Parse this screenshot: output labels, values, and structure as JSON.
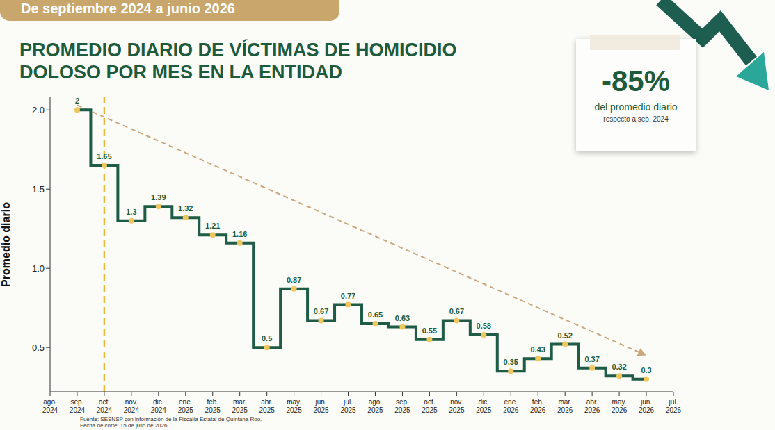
{
  "chart_data": {
    "type": "line",
    "line_style": "step",
    "marker": "circle",
    "color": "#1f5c45",
    "subtitle": "De septiembre 2024 a junio 2026",
    "title": "PROMEDIO DIARIO DE VÍCTIMAS DE HOMICIDIO DOLOSO POR MES EN LA ENTIDAD",
    "y_label": "Promedio diario",
    "categories": [
      "ago. 2024",
      "sep. 2024",
      "oct. 2024",
      "nov. 2024",
      "dic. 2024",
      "ene. 2025",
      "feb. 2025",
      "mar. 2025",
      "abr. 2025",
      "may. 2025",
      "jun. 2025",
      "jul. 2025",
      "ago. 2025",
      "sep. 2025",
      "oct. 2025",
      "nov. 2025",
      "dic. 2025",
      "ene. 2026",
      "feb. 2026",
      "mar. 2026",
      "abr. 2026",
      "may. 2026",
      "jun. 2026",
      "jul. 2026"
    ],
    "values": [
      null,
      2,
      1.65,
      1.3,
      1.39,
      1.32,
      1.21,
      1.16,
      0.5,
      0.87,
      0.67,
      0.77,
      0.65,
      0.63,
      0.55,
      0.67,
      0.58,
      0.35,
      0.43,
      0.52,
      0.37,
      0.32,
      0.3,
      null
    ],
    "ylim": [
      0.22,
      2.08
    ],
    "yticks": [
      {
        "value": 2,
        "label": "2.0"
      },
      {
        "value": 1.5,
        "label": "1.5"
      },
      {
        "value": 1,
        "label": "1.0"
      },
      0.5
    ],
    "grid": false,
    "data_labels": true,
    "highlight_category": "oct. 2024",
    "trend": {
      "categories": [
        "sep. 2024",
        "jun. 2026"
      ],
      "values": [
        2.03,
        0.45
      ]
    },
    "callout": {
      "value": "-85%",
      "text": "del promedio diario",
      "note": "respecto a sep. 2024"
    },
    "source": [
      "Fuente: SESNSP con información de la Fiscalía Estatal de Quintana Roo.",
      "Fecha de corte: 15 de julio de 2026"
    ]
  }
}
